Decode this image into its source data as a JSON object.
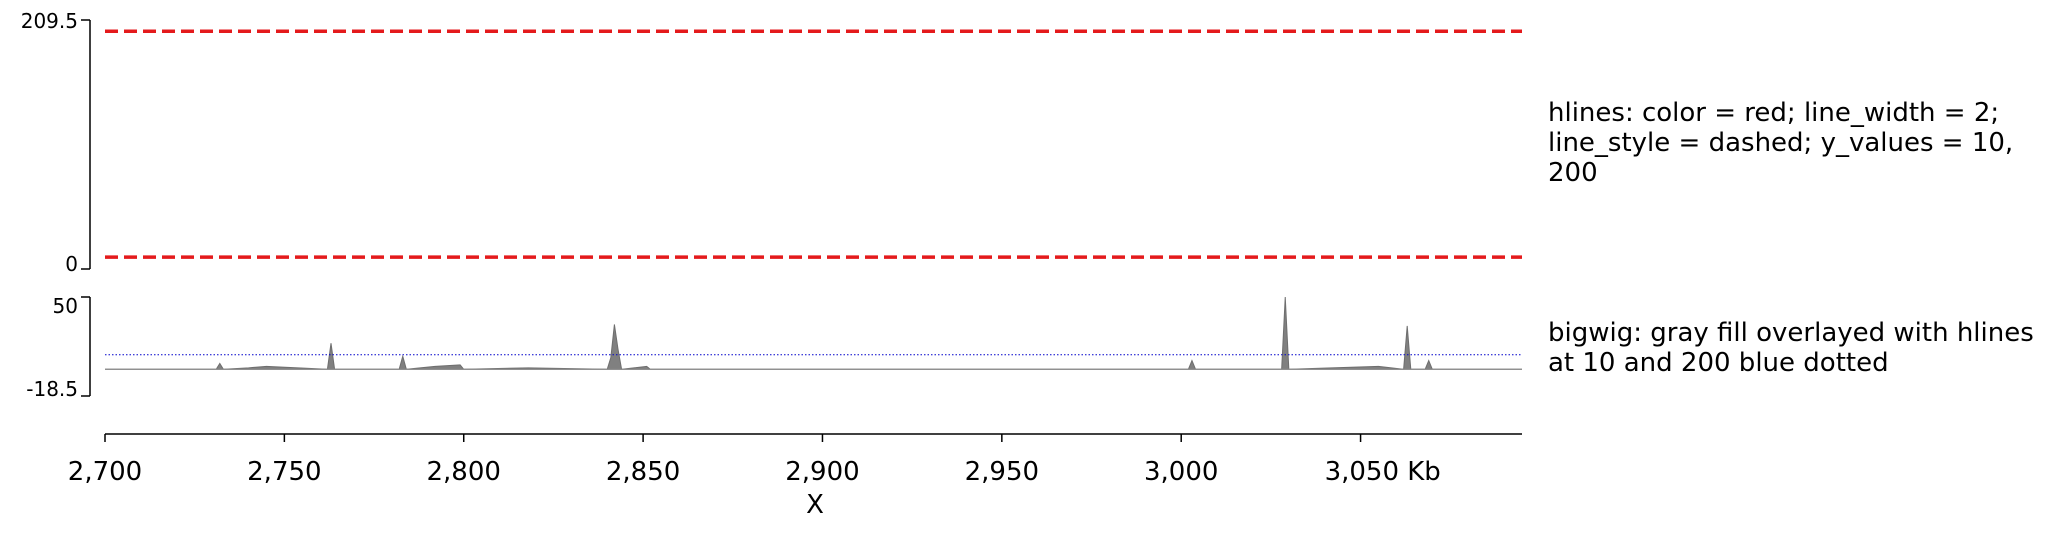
{
  "chart_data": [
    {
      "type": "line",
      "track": "hlines",
      "ylim": [
        0,
        209.5
      ],
      "y_tick_labels": [
        "0",
        "209.5"
      ],
      "hlines": [
        10,
        200
      ],
      "line_color": "#e41a1c",
      "line_style": "dashed",
      "label": "hlines: color = red; line_width = 2; line_style = dashed; y_values = 10, 200"
    },
    {
      "type": "area",
      "track": "bigwig",
      "ylim": [
        -18.5,
        50
      ],
      "y_tick_labels": [
        "-18.5",
        "50"
      ],
      "fill_color": "#808080",
      "hlines": [
        10,
        200
      ],
      "hline_color": "#0000cc",
      "hline_style": "dotted",
      "label": "bigwig: gray fill overlayed with hlines at 10 and 200 blue dotted",
      "x_kb": [
        2700,
        2731,
        2732,
        2733,
        2740,
        2745,
        2762,
        2763,
        2764,
        2782,
        2783,
        2784,
        2792,
        2799,
        2800,
        2818,
        2840,
        2841,
        2842,
        2843,
        2844,
        2851,
        2852,
        3002,
        3003,
        3004,
        3028,
        3029,
        3030,
        3055,
        3062,
        3063,
        3064,
        3068,
        3069,
        3070,
        3095
      ],
      "y": [
        0,
        0,
        4,
        0,
        1,
        2,
        0,
        18,
        0,
        0,
        9,
        0,
        2,
        3,
        0,
        1,
        0,
        8,
        31,
        14,
        0,
        2,
        0,
        0,
        6,
        0,
        0,
        50,
        0,
        2,
        0,
        30,
        0,
        0,
        6,
        0,
        0
      ]
    }
  ],
  "x_axis": {
    "xlim_kb": [
      2700,
      3095
    ],
    "ticks": [
      2700,
      2750,
      2800,
      2850,
      2900,
      2950,
      3000,
      3050
    ],
    "tick_labels": [
      "2,700",
      "2,750",
      "2,800",
      "2,850",
      "2,900",
      "2,950",
      "3,000",
      "3,050 Kb"
    ],
    "label": "X"
  }
}
